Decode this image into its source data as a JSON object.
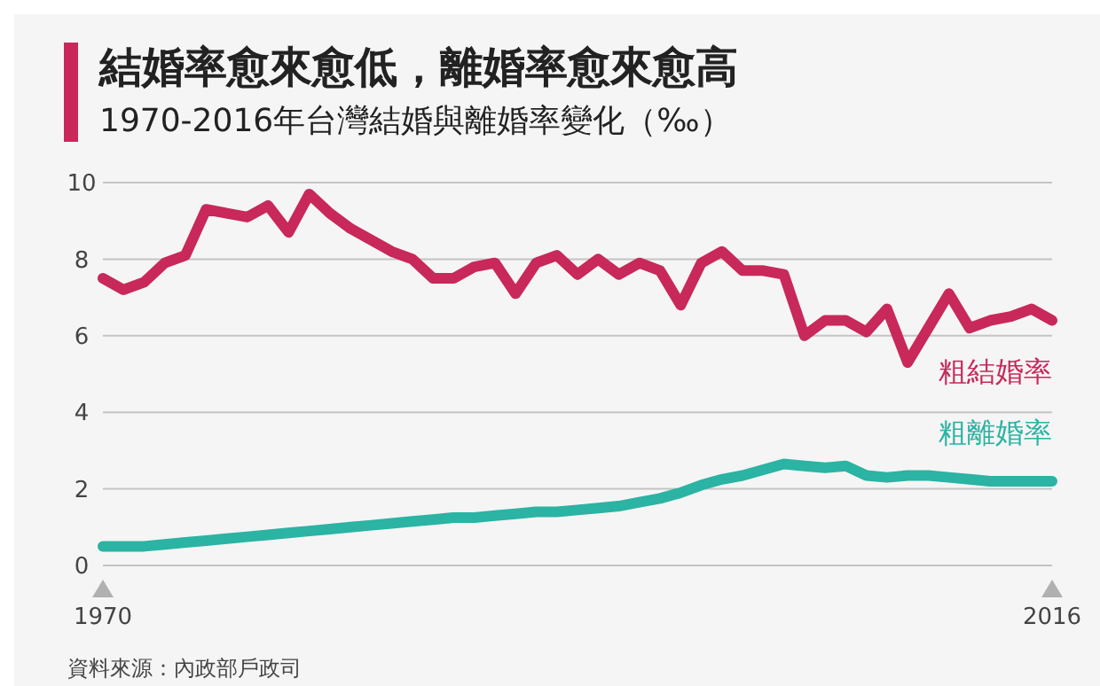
{
  "chart_data": {
    "type": "line",
    "title": "結婚率愈來愈低，離婚率愈來愈高",
    "subtitle": "1970-2016年台灣結婚與離婚率變化（‰）",
    "annotations": [
      "資料來源：內政部戶政司"
    ],
    "x": [
      1970,
      1971,
      1972,
      1973,
      1974,
      1975,
      1976,
      1977,
      1978,
      1979,
      1980,
      1981,
      1982,
      1983,
      1984,
      1985,
      1986,
      1987,
      1988,
      1989,
      1990,
      1991,
      1992,
      1993,
      1994,
      1995,
      1996,
      1997,
      1998,
      1999,
      2000,
      2001,
      2002,
      2003,
      2004,
      2005,
      2006,
      2007,
      2008,
      2009,
      2010,
      2011,
      2012,
      2013,
      2014,
      2015,
      2016
    ],
    "series": [
      {
        "name": "粗結婚率",
        "color": "#c8285a",
        "values": [
          7.5,
          7.2,
          7.4,
          7.9,
          8.1,
          9.3,
          9.2,
          9.1,
          9.4,
          8.7,
          9.7,
          9.2,
          8.8,
          8.5,
          8.2,
          8.0,
          7.5,
          7.5,
          7.8,
          7.9,
          7.1,
          7.9,
          8.1,
          7.6,
          8.0,
          7.6,
          7.9,
          7.7,
          6.8,
          7.9,
          8.2,
          7.7,
          7.7,
          7.6,
          6.0,
          6.4,
          6.4,
          6.1,
          6.7,
          5.3,
          6.2,
          7.1,
          6.2,
          6.4,
          6.5,
          6.7,
          6.4
        ]
      },
      {
        "name": "粗離婚率",
        "color": "#2bb3a3",
        "values": [
          0.5,
          0.5,
          0.5,
          0.55,
          0.6,
          0.65,
          0.7,
          0.75,
          0.8,
          0.85,
          0.9,
          0.95,
          1.0,
          1.05,
          1.1,
          1.15,
          1.2,
          1.25,
          1.25,
          1.3,
          1.35,
          1.4,
          1.4,
          1.45,
          1.5,
          1.55,
          1.65,
          1.75,
          1.9,
          2.1,
          2.25,
          2.35,
          2.5,
          2.65,
          2.6,
          2.55,
          2.6,
          2.35,
          2.3,
          2.35,
          2.35,
          2.3,
          2.25,
          2.2,
          2.2,
          2.2,
          2.2
        ]
      }
    ],
    "xlim": [
      1970,
      2016
    ],
    "xticks": [
      1970,
      2016
    ],
    "ylim": [
      0,
      10
    ],
    "yticks": [
      0,
      2,
      4,
      6,
      8,
      10
    ],
    "grid": "y",
    "line_style": "solid",
    "marker": "none"
  }
}
